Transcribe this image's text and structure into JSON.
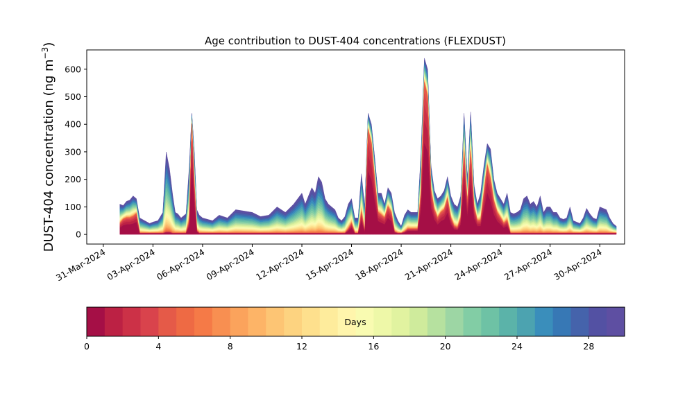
{
  "chart_data": {
    "type": "area",
    "stacked": true,
    "title": "Age contribution to DUST-404 concentrations (FLEXDUST)",
    "ylabel_main": "DUST-404 concentration (ng m",
    "ylabel_sup": "−3",
    "ylabel_close": ")",
    "ylim": [
      -35,
      670
    ],
    "yticks": [
      0,
      100,
      200,
      300,
      400,
      500,
      600
    ],
    "xlim_day": [
      -1.0,
      31.5
    ],
    "xticks": [
      {
        "day": 0,
        "label": "31-Mar-2024"
      },
      {
        "day": 3,
        "label": "03-Apr-2024"
      },
      {
        "day": 6,
        "label": "06-Apr-2024"
      },
      {
        "day": 9,
        "label": "09-Apr-2024"
      },
      {
        "day": 12,
        "label": "12-Apr-2024"
      },
      {
        "day": 15,
        "label": "15-Apr-2024"
      },
      {
        "day": 18,
        "label": "18-Apr-2024"
      },
      {
        "day": 21,
        "label": "21-Apr-2024"
      },
      {
        "day": 24,
        "label": "24-Apr-2024"
      },
      {
        "day": 27,
        "label": "27-Apr-2024"
      },
      {
        "day": 30,
        "label": "30-Apr-2024"
      }
    ],
    "total_profile": {
      "day": [
        1.0,
        1.2,
        1.4,
        1.6,
        1.8,
        2.0,
        2.2,
        2.5,
        2.8,
        3.0,
        3.3,
        3.6,
        3.8,
        4.0,
        4.2,
        4.35,
        4.5,
        4.7,
        5.0,
        5.2,
        5.35,
        5.5,
        5.65,
        5.8,
        6.0,
        6.3,
        6.6,
        7.0,
        7.5,
        8.0,
        8.5,
        9.0,
        9.5,
        10.0,
        10.5,
        11.0,
        11.5,
        12.0,
        12.2,
        12.4,
        12.6,
        12.8,
        13.0,
        13.2,
        13.4,
        13.6,
        13.8,
        14.0,
        14.2,
        14.4,
        14.6,
        14.8,
        15.0,
        15.2,
        15.4,
        15.6,
        15.8,
        16.0,
        16.2,
        16.4,
        16.6,
        16.8,
        17.0,
        17.2,
        17.4,
        17.6,
        17.8,
        18.0,
        18.2,
        18.4,
        18.6,
        18.8,
        19.0,
        19.2,
        19.4,
        19.6,
        19.8,
        20.0,
        20.2,
        20.4,
        20.6,
        20.8,
        21.0,
        21.2,
        21.4,
        21.6,
        21.8,
        22.0,
        22.2,
        22.4,
        22.6,
        22.8,
        23.0,
        23.2,
        23.4,
        23.6,
        23.8,
        24.0,
        24.2,
        24.4,
        24.6,
        24.8,
        25.0,
        25.2,
        25.4,
        25.6,
        25.8,
        26.0,
        26.2,
        26.4,
        26.6,
        26.8,
        27.0,
        27.2,
        27.4,
        27.6,
        27.8,
        28.0,
        28.2,
        28.4,
        28.6,
        28.8,
        29.0,
        29.2,
        29.4,
        29.6,
        29.8,
        30.0,
        30.2,
        30.4,
        30.6,
        30.8,
        31.0
      ],
      "total": [
        110,
        105,
        120,
        125,
        140,
        130,
        60,
        50,
        40,
        45,
        50,
        80,
        300,
        240,
        140,
        80,
        75,
        60,
        75,
        250,
        440,
        300,
        90,
        70,
        60,
        55,
        50,
        70,
        60,
        90,
        85,
        80,
        65,
        70,
        100,
        80,
        110,
        150,
        110,
        140,
        170,
        150,
        210,
        190,
        130,
        110,
        100,
        90,
        60,
        50,
        65,
        110,
        130,
        60,
        60,
        220,
        100,
        440,
        400,
        280,
        150,
        150,
        110,
        170,
        150,
        80,
        50,
        30,
        70,
        90,
        80,
        80,
        80,
        300,
        640,
        600,
        250,
        160,
        130,
        140,
        160,
        210,
        140,
        110,
        100,
        140,
        440,
        200,
        445,
        180,
        110,
        150,
        250,
        330,
        310,
        200,
        150,
        130,
        110,
        150,
        80,
        75,
        80,
        90,
        130,
        140,
        110,
        120,
        100,
        140,
        80,
        100,
        100,
        80,
        80,
        60,
        55,
        60,
        100,
        50,
        45,
        40,
        60,
        95,
        75,
        60,
        55,
        100,
        95,
        90,
        60,
        40,
        30
      ],
      "young": [
        40,
        55,
        60,
        60,
        65,
        75,
        5,
        5,
        5,
        5,
        5,
        5,
        10,
        10,
        5,
        5,
        5,
        5,
        5,
        50,
        400,
        180,
        15,
        5,
        5,
        5,
        5,
        5,
        5,
        5,
        5,
        5,
        5,
        5,
        5,
        5,
        5,
        5,
        5,
        5,
        5,
        5,
        5,
        5,
        5,
        5,
        5,
        5,
        5,
        5,
        5,
        20,
        40,
        5,
        5,
        80,
        10,
        380,
        330,
        200,
        80,
        70,
        60,
        100,
        80,
        10,
        5,
        5,
        10,
        20,
        20,
        20,
        20,
        150,
        550,
        500,
        160,
        90,
        60,
        80,
        90,
        130,
        60,
        30,
        25,
        60,
        300,
        110,
        300,
        100,
        50,
        50,
        150,
        250,
        200,
        120,
        80,
        60,
        40,
        50,
        5,
        5,
        5,
        5,
        5,
        5,
        5,
        5,
        5,
        5,
        5,
        5,
        5,
        5,
        5,
        5,
        5,
        5,
        5,
        5,
        5,
        5,
        5,
        5,
        5,
        5,
        5,
        5,
        5,
        5,
        5,
        5,
        5
      ]
    },
    "colorbar": {
      "label": "Days",
      "min": 0,
      "max": 30,
      "ticks": [
        0,
        4,
        8,
        12,
        16,
        20,
        24,
        28
      ],
      "colors": [
        "#a50f46",
        "#bc2144",
        "#cc3147",
        "#d9434c",
        "#e55a48",
        "#ee6a44",
        "#f57a47",
        "#f88f51",
        "#fba35c",
        "#fdb467",
        "#fdc574",
        "#fdd380",
        "#fee08d",
        "#feec9c",
        "#fff5ac",
        "#f9fbb1",
        "#eef8a8",
        "#e1f3a0",
        "#cfeb9c",
        "#b6e19f",
        "#9dd6a4",
        "#82cda5",
        "#6ec2a5",
        "#5bb3a9",
        "#4ca3b0",
        "#3a8ebb",
        "#3778b5",
        "#4563ab",
        "#5351a3",
        "#5e4fa2"
      ]
    }
  }
}
